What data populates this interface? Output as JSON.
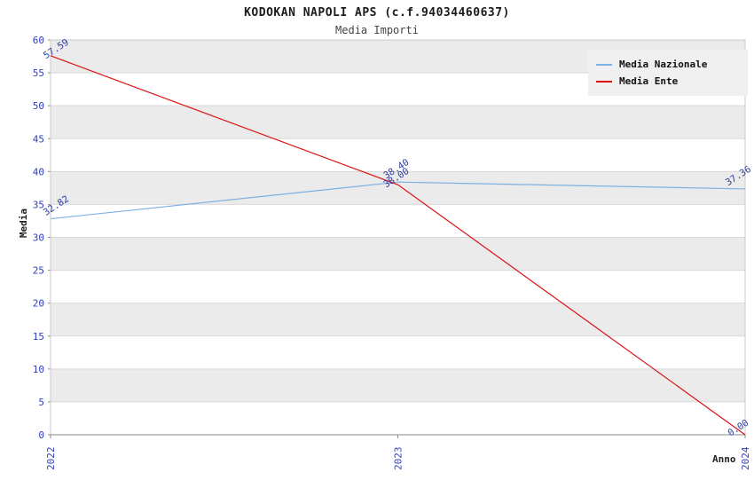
{
  "chart_data": {
    "type": "line",
    "title": "KODOKAN NAPOLI APS (c.f.94034460637)",
    "subtitle": "Media Importi",
    "xlabel": "Anno",
    "ylabel": "Media",
    "x": [
      "2022",
      "2023",
      "2024"
    ],
    "ylim": [
      0,
      60
    ],
    "yticks": [
      0,
      5,
      10,
      15,
      20,
      25,
      30,
      35,
      40,
      45,
      50,
      55,
      60
    ],
    "grid": true,
    "legend_position": "top-right",
    "series": [
      {
        "name": "Media Nazionale",
        "color": "#7db1e3",
        "values": [
          32.82,
          38.4,
          37.36
        ],
        "point_labels": [
          "32.82",
          "38.40",
          "37.36"
        ]
      },
      {
        "name": "Media Ente",
        "color": "#dd1111",
        "values": [
          57.59,
          38.0,
          0.0
        ],
        "point_labels": [
          "57.59",
          "38.00",
          "0.00"
        ]
      }
    ],
    "colors": {
      "axis_tick_label": "#2f3ebd",
      "data_label": "#2e3da0",
      "band": "#ebebeb",
      "gridline": "#d9d9d9",
      "plot_border": "#c9c9c9",
      "axis_line": "#8a8a8a",
      "title_text": "#1a1a1a",
      "legend_background": "#f0f0f0"
    }
  }
}
